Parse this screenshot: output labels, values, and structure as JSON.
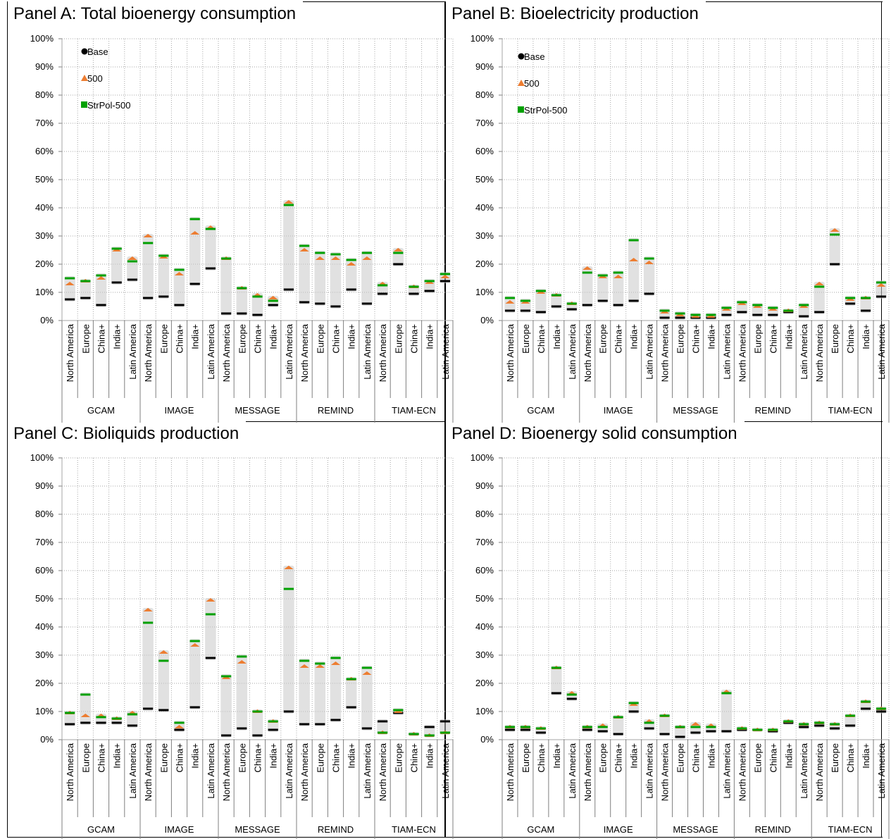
{
  "models": [
    "GCAM",
    "IMAGE",
    "MESSAGE",
    "REMIND",
    "TIAM-ECN"
  ],
  "regions": [
    "North America",
    "Europe",
    "China+",
    "India+",
    "Latin America"
  ],
  "y_ticks": [
    "0%",
    "10%",
    "20%",
    "30%",
    "40%",
    "50%",
    "60%",
    "70%",
    "80%",
    "90%",
    "100%"
  ],
  "legend": [
    {
      "name": "Base",
      "marker": "circle",
      "color": "#000000"
    },
    {
      "name": "500",
      "marker": "triangle",
      "color": "#ED7D31"
    },
    {
      "name": "StrPol-500",
      "marker": "square",
      "color": "#00A000"
    }
  ],
  "chart_data": [
    {
      "type": "scatter",
      "title": "Panel A: Total bioenergy consumption",
      "ylim": [
        0,
        100
      ],
      "grid": true,
      "legend_position": "top-left",
      "series": [
        {
          "name": "Base",
          "values": [
            7.5,
            8,
            5.5,
            13.5,
            14.5,
            8,
            8.5,
            5.5,
            13,
            18.5,
            2.5,
            2.5,
            2,
            5.5,
            11,
            6.5,
            6,
            5,
            11,
            6,
            9.5,
            20,
            9.5,
            10.5,
            14
          ]
        },
        {
          "name": "500",
          "values": [
            13,
            14,
            15,
            25,
            22,
            30,
            22.5,
            16.5,
            31,
            33,
            22,
            11.5,
            9,
            8,
            42,
            25,
            22,
            22,
            20,
            22,
            13,
            25,
            12,
            13.5,
            15.5
          ]
        },
        {
          "name": "StrPol-500",
          "values": [
            15,
            14,
            16,
            25.5,
            21,
            27.5,
            23,
            18,
            36,
            32.5,
            22,
            11.5,
            8.5,
            7,
            41,
            26.5,
            24,
            23.5,
            21.5,
            24,
            12.5,
            24,
            12,
            14,
            16.5
          ]
        }
      ]
    },
    {
      "type": "scatter",
      "title": "Panel B: Bioelectricity production",
      "ylim": [
        0,
        100
      ],
      "grid": true,
      "legend_position": "top-left",
      "series": [
        {
          "name": "Base",
          "values": [
            3.5,
            3.5,
            3,
            5,
            4,
            5.5,
            7,
            5.5,
            7,
            9.5,
            1,
            1,
            1,
            1,
            2,
            3,
            2,
            2,
            3,
            1.5,
            3,
            20,
            6,
            3.5,
            8.5
          ]
        },
        {
          "name": "500",
          "values": [
            6.5,
            6.5,
            10,
            9,
            6,
            18.5,
            15.5,
            15.5,
            21.5,
            20.5,
            3,
            2,
            1.5,
            1.5,
            4,
            6,
            5,
            4,
            3.5,
            5,
            13,
            32,
            7.5,
            8,
            12.5
          ]
        },
        {
          "name": "StrPol-500",
          "values": [
            8,
            7,
            10.5,
            9,
            6,
            17,
            16,
            17,
            28.5,
            22,
            3.5,
            2.5,
            2,
            2,
            4.5,
            6.5,
            5.5,
            4.5,
            3.5,
            5.5,
            12,
            30.5,
            8,
            8,
            13.5
          ]
        }
      ]
    },
    {
      "type": "scatter",
      "title": "Panel C: Bioliquids production",
      "ylim": [
        0,
        100
      ],
      "grid": true,
      "legend_position": "none",
      "series": [
        {
          "name": "Base",
          "values": [
            5.5,
            6,
            6,
            6,
            5,
            11,
            10.5,
            3.5,
            11.5,
            29,
            1.5,
            4,
            1.5,
            3.5,
            10,
            5.5,
            5.5,
            7,
            11.5,
            4,
            6.5,
            9.5,
            2,
            4.5,
            6.5
          ]
        },
        {
          "name": "500",
          "values": [
            9.5,
            8.5,
            8.5,
            7.5,
            9.5,
            46,
            31,
            4.5,
            33.5,
            49.5,
            22,
            27.5,
            10,
            6.5,
            61,
            26,
            26,
            27,
            21.5,
            23.5,
            2.5,
            10,
            2,
            1.5,
            2.5
          ]
        },
        {
          "name": "StrPol-500",
          "values": [
            9.5,
            16,
            8,
            7.5,
            9,
            41.5,
            28,
            6,
            35,
            44.5,
            22.5,
            29.5,
            10,
            6.5,
            53.5,
            28,
            27,
            29,
            21.5,
            25.5,
            2.5,
            10.5,
            2,
            1.5,
            2.5
          ]
        }
      ]
    },
    {
      "type": "scatter",
      "title": "Panel D: Bioenergy solid consumption",
      "ylim": [
        0,
        100
      ],
      "grid": true,
      "legend_position": "none",
      "series": [
        {
          "name": "Base",
          "values": [
            3.5,
            3.5,
            2.5,
            16.5,
            14.5,
            3.5,
            3,
            2,
            10,
            4,
            2,
            1,
            2.5,
            3,
            3,
            3.5,
            3.5,
            3,
            6,
            4.5,
            5,
            4,
            5,
            11,
            10
          ]
        },
        {
          "name": "500",
          "values": [
            4.5,
            4.5,
            4,
            25.5,
            16.5,
            4.5,
            5,
            8,
            12.5,
            6.5,
            8.5,
            4.5,
            5.5,
            5,
            17,
            4,
            3.5,
            3.5,
            6.5,
            5.5,
            6,
            5.5,
            8.5,
            13.5,
            11
          ]
        },
        {
          "name": "StrPol-500",
          "values": [
            4.5,
            4.5,
            4,
            25.5,
            16,
            4.5,
            4.5,
            8,
            13,
            6,
            8.5,
            4.5,
            4.5,
            4.5,
            16.5,
            4,
            3.5,
            3.5,
            6.5,
            5.5,
            6,
            5.5,
            8.5,
            13.5,
            11
          ]
        }
      ]
    }
  ]
}
